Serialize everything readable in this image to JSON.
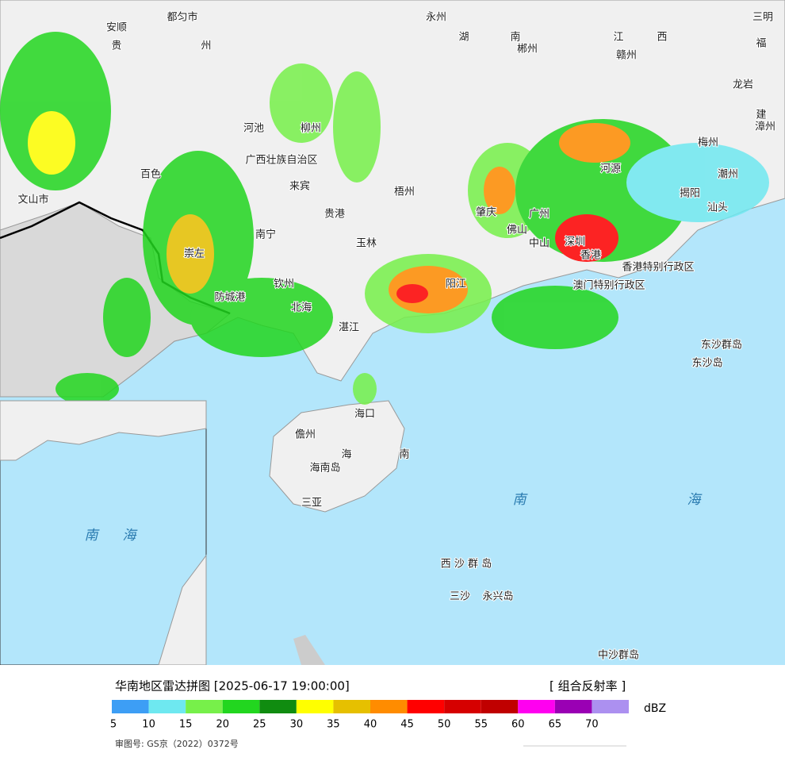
{
  "map": {
    "labels": [
      "都匀市",
      "永州",
      "三明",
      "安顺",
      "贵",
      "州",
      "湖",
      "南",
      "郴州",
      "江",
      "西",
      "赣州",
      "福",
      "龙岩",
      "建",
      "漳州",
      "梅州",
      "潮州",
      "揭阳",
      "汕头",
      "河池",
      "柳州",
      "广西壮族自治区",
      "百色",
      "来宾",
      "贵港",
      "梧州",
      "南宁",
      "玉林",
      "崇左",
      "钦州",
      "防城港",
      "北海",
      "湛江",
      "阳江",
      "肇庆",
      "广州",
      "佛山",
      "中山",
      "深圳",
      "香港",
      "香港特别行政区",
      "澳门特别行政区",
      "河源",
      "文山市",
      "海口",
      "儋州",
      "海南岛",
      "海",
      "南",
      "三亚",
      "南",
      "海",
      "东沙群岛",
      "东沙岛",
      "西 沙 群 岛",
      "三沙",
      "永兴岛",
      "中沙群岛"
    ],
    "inset_labels": [
      "南",
      "海"
    ]
  },
  "legend": {
    "title": "华南地区雷达拼图 [2025-06-17 19:00:00]",
    "product": "[ 组合反射率 ]",
    "unit": "dBZ",
    "ticks": [
      5,
      10,
      15,
      20,
      25,
      30,
      35,
      40,
      45,
      50,
      55,
      60,
      65,
      70
    ],
    "colors": [
      "#3d9ef5",
      "#6ee8f0",
      "#77f04a",
      "#22d61f",
      "#108c10",
      "#ffff00",
      "#e6c000",
      "#ff8c00",
      "#ff0000",
      "#d60000",
      "#c00000",
      "#ff00f0",
      "#9a00b4",
      "#ac90f0"
    ]
  },
  "footer": {
    "approval": "审图号: GS京（2022）0372号"
  }
}
